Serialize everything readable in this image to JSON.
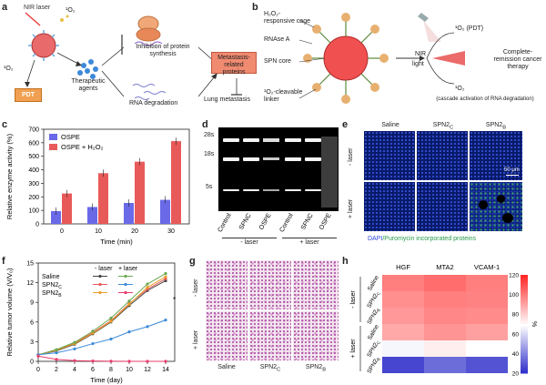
{
  "panel_labels": {
    "a": "a",
    "b": "b",
    "c": "c",
    "d": "d",
    "e": "e",
    "f": "f",
    "g": "g",
    "h": "h"
  },
  "panel_a": {
    "nir_laser": "NIR laser",
    "singlet_o2": "¹O₂",
    "singlet_o2_left": "¹O₂",
    "pdt": "PDT",
    "therapeutic_agents": "Therapeutic agents",
    "inhibition": "Inhibition of protein synthesis",
    "rna_degradation": "RNA degradation",
    "metastasis_proteins": "Metastasis-related proteins",
    "lung_metastasis": "Lung metastasis"
  },
  "panel_b": {
    "h2o2_cage": "H₂O₂-responsive cage",
    "rnase": "RNAse A",
    "spn_core": "SPN core",
    "o2_linker": "¹O₂-cleavable linker",
    "nir": "NIR",
    "light": "light",
    "o2_pdt": "¹O₂ (PDT)",
    "o2": "¹O₂",
    "complete": "Complete-remission cancer therapy",
    "cascade": "(cascade activation of RNA degradation)"
  },
  "panel_c": {
    "chart_data": {
      "type": "bar",
      "categories": [
        "0",
        "10",
        "20",
        "30"
      ],
      "series": [
        {
          "name": "OSPE",
          "values": [
            95,
            125,
            155,
            178
          ],
          "color": "#6a6ae8"
        },
        {
          "name": "OSPE + H₂O₂",
          "values": [
            225,
            375,
            460,
            612
          ],
          "color": "#e85a5a"
        }
      ],
      "xlabel": "Time (min)",
      "ylabel": "Relative enzyme activity (%)",
      "ylim": [
        0,
        700
      ],
      "yticks": [
        0,
        100,
        200,
        300,
        400,
        500,
        600,
        700
      ],
      "legend": "top-left"
    }
  },
  "panel_d": {
    "bands": [
      "28s",
      "18s",
      "5s"
    ],
    "lanes": [
      "Control",
      "SPNC",
      "OSPE",
      "Control",
      "SPNC",
      "OSPE"
    ],
    "group_minus": "- laser",
    "group_plus": "+ laser"
  },
  "panel_e": {
    "cols": [
      "Saline",
      "SPN2",
      "SPN2"
    ],
    "col_subs": [
      "",
      "C",
      "B"
    ],
    "row_minus": "- laser",
    "row_plus": "+ laser",
    "scale": "50 μm",
    "caption_dapi": "DAPI",
    "caption_rest": "/Puromycin incorporated proteins"
  },
  "panel_f": {
    "chart_data": {
      "type": "line",
      "x": [
        0,
        2,
        4,
        6,
        8,
        10,
        12,
        14
      ],
      "xlabel": "Time (day)",
      "ylabel": "Relative tumor volume (V/V₀)",
      "xlim": [
        0,
        15
      ],
      "ylim": [
        0,
        15
      ],
      "xticks": [
        0,
        2,
        4,
        6,
        8,
        10,
        12,
        14
      ],
      "yticks": [
        0,
        3,
        6,
        9,
        12,
        15
      ],
      "series": [
        {
          "name": "Saline",
          "laser": "-",
          "values": [
            1,
            1.6,
            2.6,
            4.2,
            6.0,
            8.5,
            10.8,
            12.3
          ],
          "color": "#444444"
        },
        {
          "name": "SPN2C",
          "laser": "-",
          "values": [
            1,
            1.7,
            2.8,
            4.4,
            6.2,
            8.8,
            11.0,
            12.6
          ],
          "color": "#e85a5a"
        },
        {
          "name": "SPN2B",
          "laser": "-",
          "values": [
            1,
            1.7,
            2.7,
            4.3,
            6.1,
            8.7,
            11.3,
            12.9
          ],
          "color": "#e8a02a"
        },
        {
          "name": "Saline",
          "laser": "+",
          "values": [
            1,
            1.8,
            2.9,
            4.6,
            6.6,
            9.2,
            11.8,
            13.4
          ],
          "color": "#6aa84f"
        },
        {
          "name": "SPN2C",
          "laser": "+",
          "values": [
            1,
            1.3,
            1.9,
            2.7,
            3.4,
            4.5,
            5.3,
            6.3
          ],
          "color": "#3c8ad8"
        },
        {
          "name": "SPN2B",
          "laser": "+",
          "values": [
            0.8,
            0.3,
            0.1,
            0.05,
            0.02,
            0,
            0,
            0
          ],
          "color": "#e83c6a"
        }
      ],
      "legend_head_minus": "- laser",
      "legend_head_plus": "+ laser",
      "legend_names": [
        "Saline",
        "SPN2",
        "SPN2"
      ],
      "legend_subs": [
        "",
        "C",
        "B"
      ],
      "significance": "*"
    }
  },
  "panel_g": {
    "row_minus": "- laser",
    "row_plus": "+ laser",
    "cols": [
      "Saline",
      "SPN2",
      "SPN2"
    ],
    "col_subs": [
      "",
      "C",
      "B"
    ]
  },
  "panel_h": {
    "chart_data": {
      "type": "heatmap",
      "columns": [
        "HGF",
        "MTA2",
        "VCAM-1"
      ],
      "rows": [
        {
          "group": "- laser",
          "name": "Saline",
          "sub": ""
        },
        {
          "group": "- laser",
          "name": "SPN2",
          "sub": "C"
        },
        {
          "group": "- laser",
          "name": "SPN2",
          "sub": "B"
        },
        {
          "group": "+ laser",
          "name": "Saline",
          "sub": ""
        },
        {
          "group": "+ laser",
          "name": "SPN2",
          "sub": "C"
        },
        {
          "group": "+ laser",
          "name": "SPN2",
          "sub": "B"
        }
      ],
      "values": [
        [
          100,
          104,
          100
        ],
        [
          96,
          100,
          99
        ],
        [
          94,
          98,
          97
        ],
        [
          90,
          95,
          92
        ],
        [
          68,
          74,
          70
        ],
        [
          27,
          36,
          30
        ]
      ],
      "colorbar_ticks": [
        20,
        40,
        60,
        80,
        100,
        120
      ],
      "colorbar_unit": "%",
      "zlim": [
        20,
        120
      ]
    }
  }
}
